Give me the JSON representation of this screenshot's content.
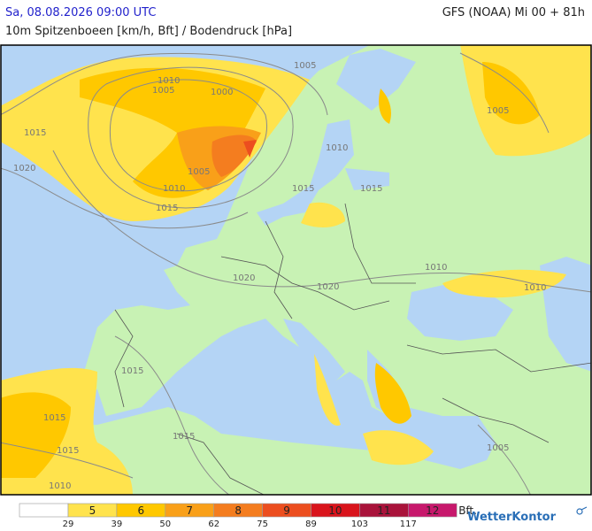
{
  "header": {
    "title": "Sa, 08.08.2026 09:00 UTC",
    "model": "GFS (NOAA) Mi 00 + 81h",
    "subtitle": "10m Spitzenboeen [km/h, Bft] / Bodendruck [hPa]"
  },
  "map": {
    "isobar_labels": [
      "1005",
      "1010",
      "1005",
      "1000",
      "1015",
      "1020",
      "1005",
      "1010",
      "1015",
      "1015",
      "1005",
      "1010",
      "1015",
      "1010",
      "1010",
      "1020",
      "1020",
      "1015",
      "1015",
      "1015",
      "1015",
      "1010",
      "1005"
    ]
  },
  "legend": {
    "classes": [
      {
        "label": "5",
        "color": "#ffe34d"
      },
      {
        "label": "6",
        "color": "#ffc800"
      },
      {
        "label": "7",
        "color": "#f9a019"
      },
      {
        "label": "8",
        "color": "#f47d1f"
      },
      {
        "label": "9",
        "color": "#ec4e1f"
      },
      {
        "label": "10",
        "color": "#d9141c"
      },
      {
        "label": "11",
        "color": "#a9133b"
      },
      {
        "label": "12",
        "color": "#c7186c"
      }
    ],
    "thresholds": [
      "29",
      "39",
      "50",
      "62",
      "75",
      "89",
      "103",
      "117"
    ],
    "unit": "Bft."
  },
  "brand": "WetterKontor"
}
